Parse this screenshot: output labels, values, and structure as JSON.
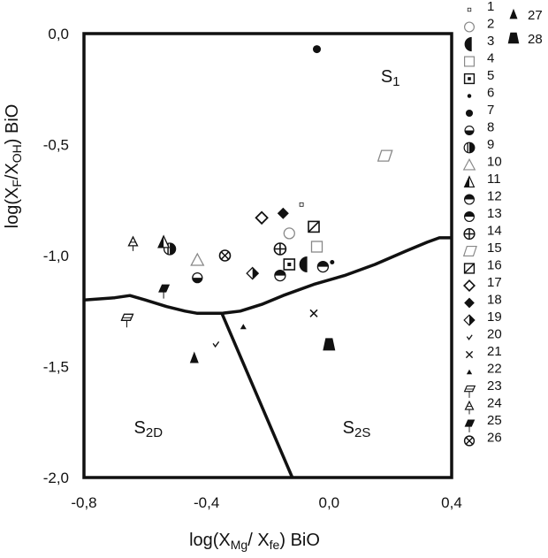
{
  "chart_data": {
    "type": "scatter",
    "title": "",
    "xlabel": {
      "pre": "log(X",
      "sub1": "Mg",
      "mid": "/ X",
      "sub2": "fe",
      "post": ") BiO"
    },
    "ylabel": {
      "pre": "log(X",
      "sub1": "F",
      "mid": "/X",
      "sub2": "OH",
      "post": ") BiO"
    },
    "xlim": [
      -0.8,
      0.4
    ],
    "ylim": [
      -2.0,
      0.0
    ],
    "xticks": [
      {
        "v": -0.8,
        "label": "-0,8"
      },
      {
        "v": -0.4,
        "label": "-0,4"
      },
      {
        "v": 0.0,
        "label": "0,0"
      },
      {
        "v": 0.4,
        "label": "0,4"
      }
    ],
    "yticks": [
      {
        "v": 0.0,
        "label": "0,0"
      },
      {
        "v": -0.5,
        "label": "-0,5"
      },
      {
        "v": -1.0,
        "label": "-1,0"
      },
      {
        "v": -1.5,
        "label": "-1,5"
      },
      {
        "v": -2.0,
        "label": "-2,0"
      }
    ],
    "grid": false,
    "legend_position": "right",
    "fields": [
      {
        "main": "S",
        "sub": "1",
        "x": 0.2,
        "y": -0.22
      },
      {
        "main": "S",
        "sub": "2D",
        "x": -0.59,
        "y": -1.8
      },
      {
        "main": "S",
        "sub": "2S",
        "x": 0.09,
        "y": -1.8
      }
    ],
    "boundaries": [
      {
        "name": "upper-curve",
        "points": [
          [
            -0.8,
            -1.2
          ],
          [
            -0.7,
            -1.19
          ],
          [
            -0.65,
            -1.18
          ],
          [
            -0.6,
            -1.2
          ],
          [
            -0.53,
            -1.23
          ],
          [
            -0.47,
            -1.25
          ],
          [
            -0.43,
            -1.26
          ],
          [
            -0.35,
            -1.26
          ],
          [
            -0.29,
            -1.25
          ],
          [
            -0.22,
            -1.22
          ],
          [
            -0.15,
            -1.18
          ],
          [
            -0.05,
            -1.13
          ],
          [
            0.05,
            -1.09
          ],
          [
            0.15,
            -1.04
          ],
          [
            0.25,
            -0.98
          ],
          [
            0.32,
            -0.94
          ],
          [
            0.36,
            -0.92
          ],
          [
            0.4,
            -0.92
          ]
        ]
      },
      {
        "name": "divide-line",
        "points": [
          [
            -0.35,
            -1.26
          ],
          [
            -0.12,
            -2.0
          ]
        ]
      }
    ],
    "series": [
      {
        "name": "1",
        "marker": "tiny-square",
        "points": [
          [
            -0.09,
            -0.77
          ]
        ]
      },
      {
        "name": "2",
        "marker": "open-circle",
        "points": [
          [
            -0.13,
            -0.9
          ]
        ]
      },
      {
        "name": "3",
        "marker": "half-circle-left",
        "points": [
          [
            -0.08,
            -1.04
          ]
        ]
      },
      {
        "name": "4",
        "marker": "open-square",
        "points": [
          [
            -0.04,
            -0.96
          ]
        ]
      },
      {
        "name": "5",
        "marker": "dot-square",
        "points": [
          [
            -0.13,
            -1.04
          ]
        ]
      },
      {
        "name": "6",
        "marker": "small-dot",
        "points": [
          [
            0.01,
            -1.03
          ]
        ]
      },
      {
        "name": "7",
        "marker": "filled-circle",
        "points": [
          [
            -0.04,
            -0.07
          ]
        ]
      },
      {
        "name": "8",
        "marker": "circle-bottom-fill",
        "points": [
          [
            -0.43,
            -1.1
          ]
        ]
      },
      {
        "name": "9",
        "marker": "circle-vert-half",
        "points": [
          [
            -0.52,
            -0.97
          ]
        ]
      },
      {
        "name": "10",
        "marker": "open-triangle",
        "points": [
          [
            -0.43,
            -1.02
          ]
        ]
      },
      {
        "name": "11",
        "marker": "triangle-half",
        "points": [
          [
            -0.54,
            -0.94
          ]
        ]
      },
      {
        "name": "12",
        "marker": "circle-top-fill",
        "points": [
          [
            -0.16,
            -1.09
          ]
        ]
      },
      {
        "name": "13",
        "marker": "circle-top-fill",
        "points": [
          [
            -0.02,
            -1.05
          ]
        ]
      },
      {
        "name": "14",
        "marker": "crossed-circle",
        "points": [
          [
            -0.16,
            -0.97
          ]
        ]
      },
      {
        "name": "15",
        "marker": "parallelogram",
        "points": [
          [
            0.18,
            -0.55
          ]
        ]
      },
      {
        "name": "16",
        "marker": "slash-square",
        "points": [
          [
            -0.05,
            -0.87
          ]
        ]
      },
      {
        "name": "17",
        "marker": "open-diamond",
        "points": [
          [
            -0.22,
            -0.83
          ]
        ]
      },
      {
        "name": "18",
        "marker": "filled-diamond",
        "points": [
          [
            -0.15,
            -0.81
          ]
        ]
      },
      {
        "name": "19",
        "marker": "half-diamond",
        "points": [
          [
            -0.25,
            -1.08
          ]
        ]
      },
      {
        "name": "20",
        "marker": "check",
        "points": [
          [
            -0.37,
            -1.4
          ]
        ]
      },
      {
        "name": "21",
        "marker": "cross-x",
        "points": [
          [
            -0.05,
            -1.26
          ]
        ]
      },
      {
        "name": "22",
        "marker": "small-triangle",
        "points": [
          [
            -0.28,
            -1.32
          ]
        ]
      },
      {
        "name": "23",
        "marker": "stemmed-parallelogram",
        "points": [
          [
            -0.66,
            -1.28
          ]
        ]
      },
      {
        "name": "24",
        "marker": "stemmed-triangle",
        "points": [
          [
            -0.64,
            -0.94
          ]
        ]
      },
      {
        "name": "25",
        "marker": "stemmed-filled-parallelogram",
        "points": [
          [
            -0.54,
            -1.15
          ]
        ]
      },
      {
        "name": "26",
        "marker": "crossed-circle-x",
        "points": [
          [
            -0.34,
            -1.0
          ]
        ]
      },
      {
        "name": "27",
        "marker": "filled-triangle",
        "points": [
          [
            -0.44,
            -1.46
          ]
        ]
      },
      {
        "name": "28",
        "marker": "filled-trapezoid",
        "points": [
          [
            0.0,
            -1.4
          ]
        ]
      }
    ]
  }
}
